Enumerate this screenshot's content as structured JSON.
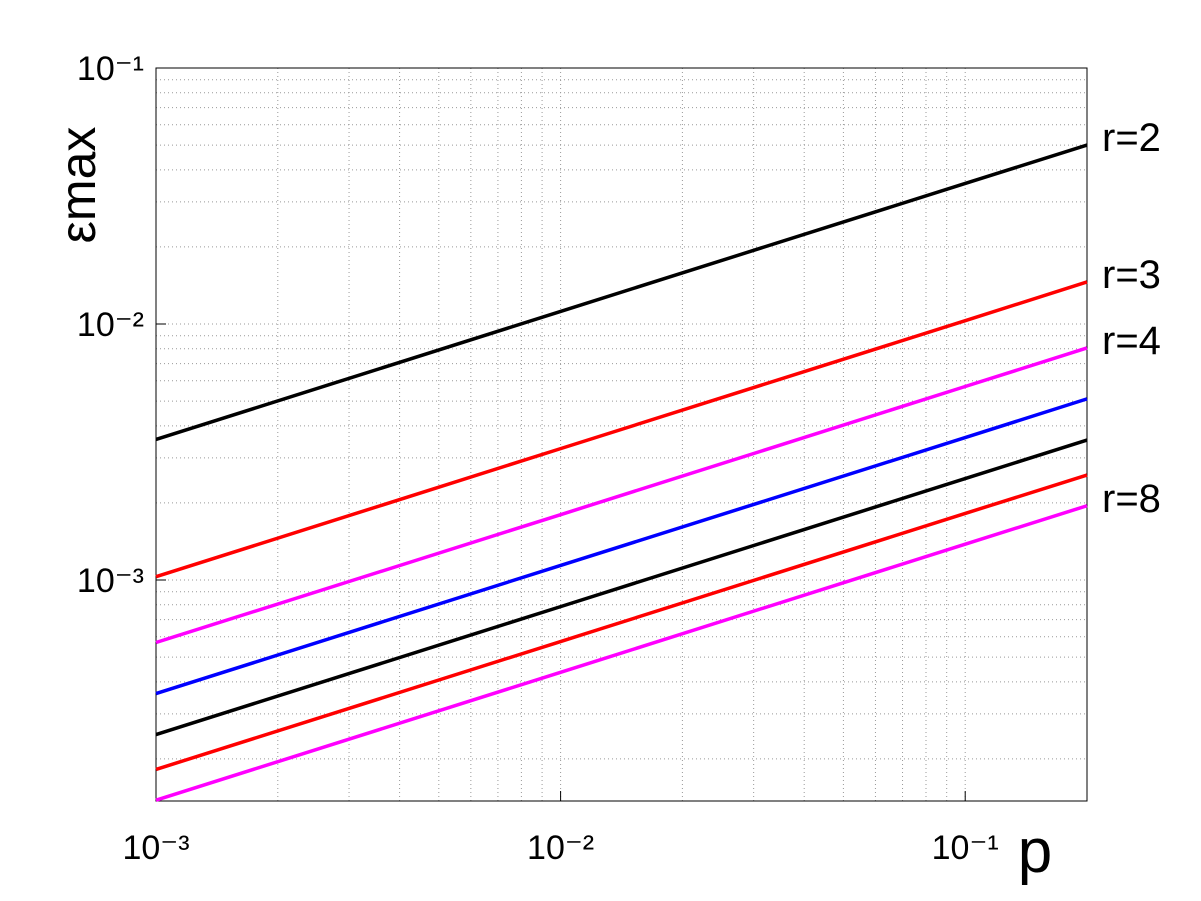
{
  "chart_data": {
    "type": "line",
    "xlabel": "p",
    "ylabel": "εmax",
    "x": [
      0.001,
      0.01,
      0.1,
      0.2
    ],
    "series": [
      {
        "name": "r=2",
        "color": "#000000",
        "values": [
          0.00354,
          0.0112,
          0.0354,
          0.05
        ]
      },
      {
        "name": "r=3",
        "color": "#ff0000",
        "values": [
          0.00103,
          0.00326,
          0.0103,
          0.0146
        ]
      },
      {
        "name": "r=4",
        "color": "#ff00ff",
        "values": [
          0.00057,
          0.0018,
          0.0057,
          0.00806
        ]
      },
      {
        "color": "#0000ff",
        "values": [
          0.00036,
          0.00114,
          0.0036,
          0.0051
        ]
      },
      {
        "color": "#000000",
        "values": [
          0.000249,
          0.000787,
          0.00249,
          0.00352
        ]
      },
      {
        "color": "#ff0000",
        "values": [
          0.000182,
          0.000575,
          0.00182,
          0.00257
        ]
      },
      {
        "name": "r=8",
        "color": "#ff00ff",
        "values": [
          0.000138,
          0.000436,
          0.00138,
          0.00195
        ]
      }
    ],
    "xscale": "log",
    "yscale": "log",
    "xlim": [
      0.001,
      0.2
    ],
    "ylim": [
      0.000137,
      0.1
    ],
    "xticks": [
      {
        "value": 0.001,
        "label": "10⁻³"
      },
      {
        "value": 0.01,
        "label": "10⁻²"
      },
      {
        "value": 0.1,
        "label": "10⁻¹"
      }
    ],
    "yticks": [
      {
        "value": 0.001,
        "label": "10⁻³"
      },
      {
        "value": 0.01,
        "label": "10⁻²"
      },
      {
        "value": 0.1,
        "label": "10⁻¹"
      }
    ],
    "grid": true
  }
}
